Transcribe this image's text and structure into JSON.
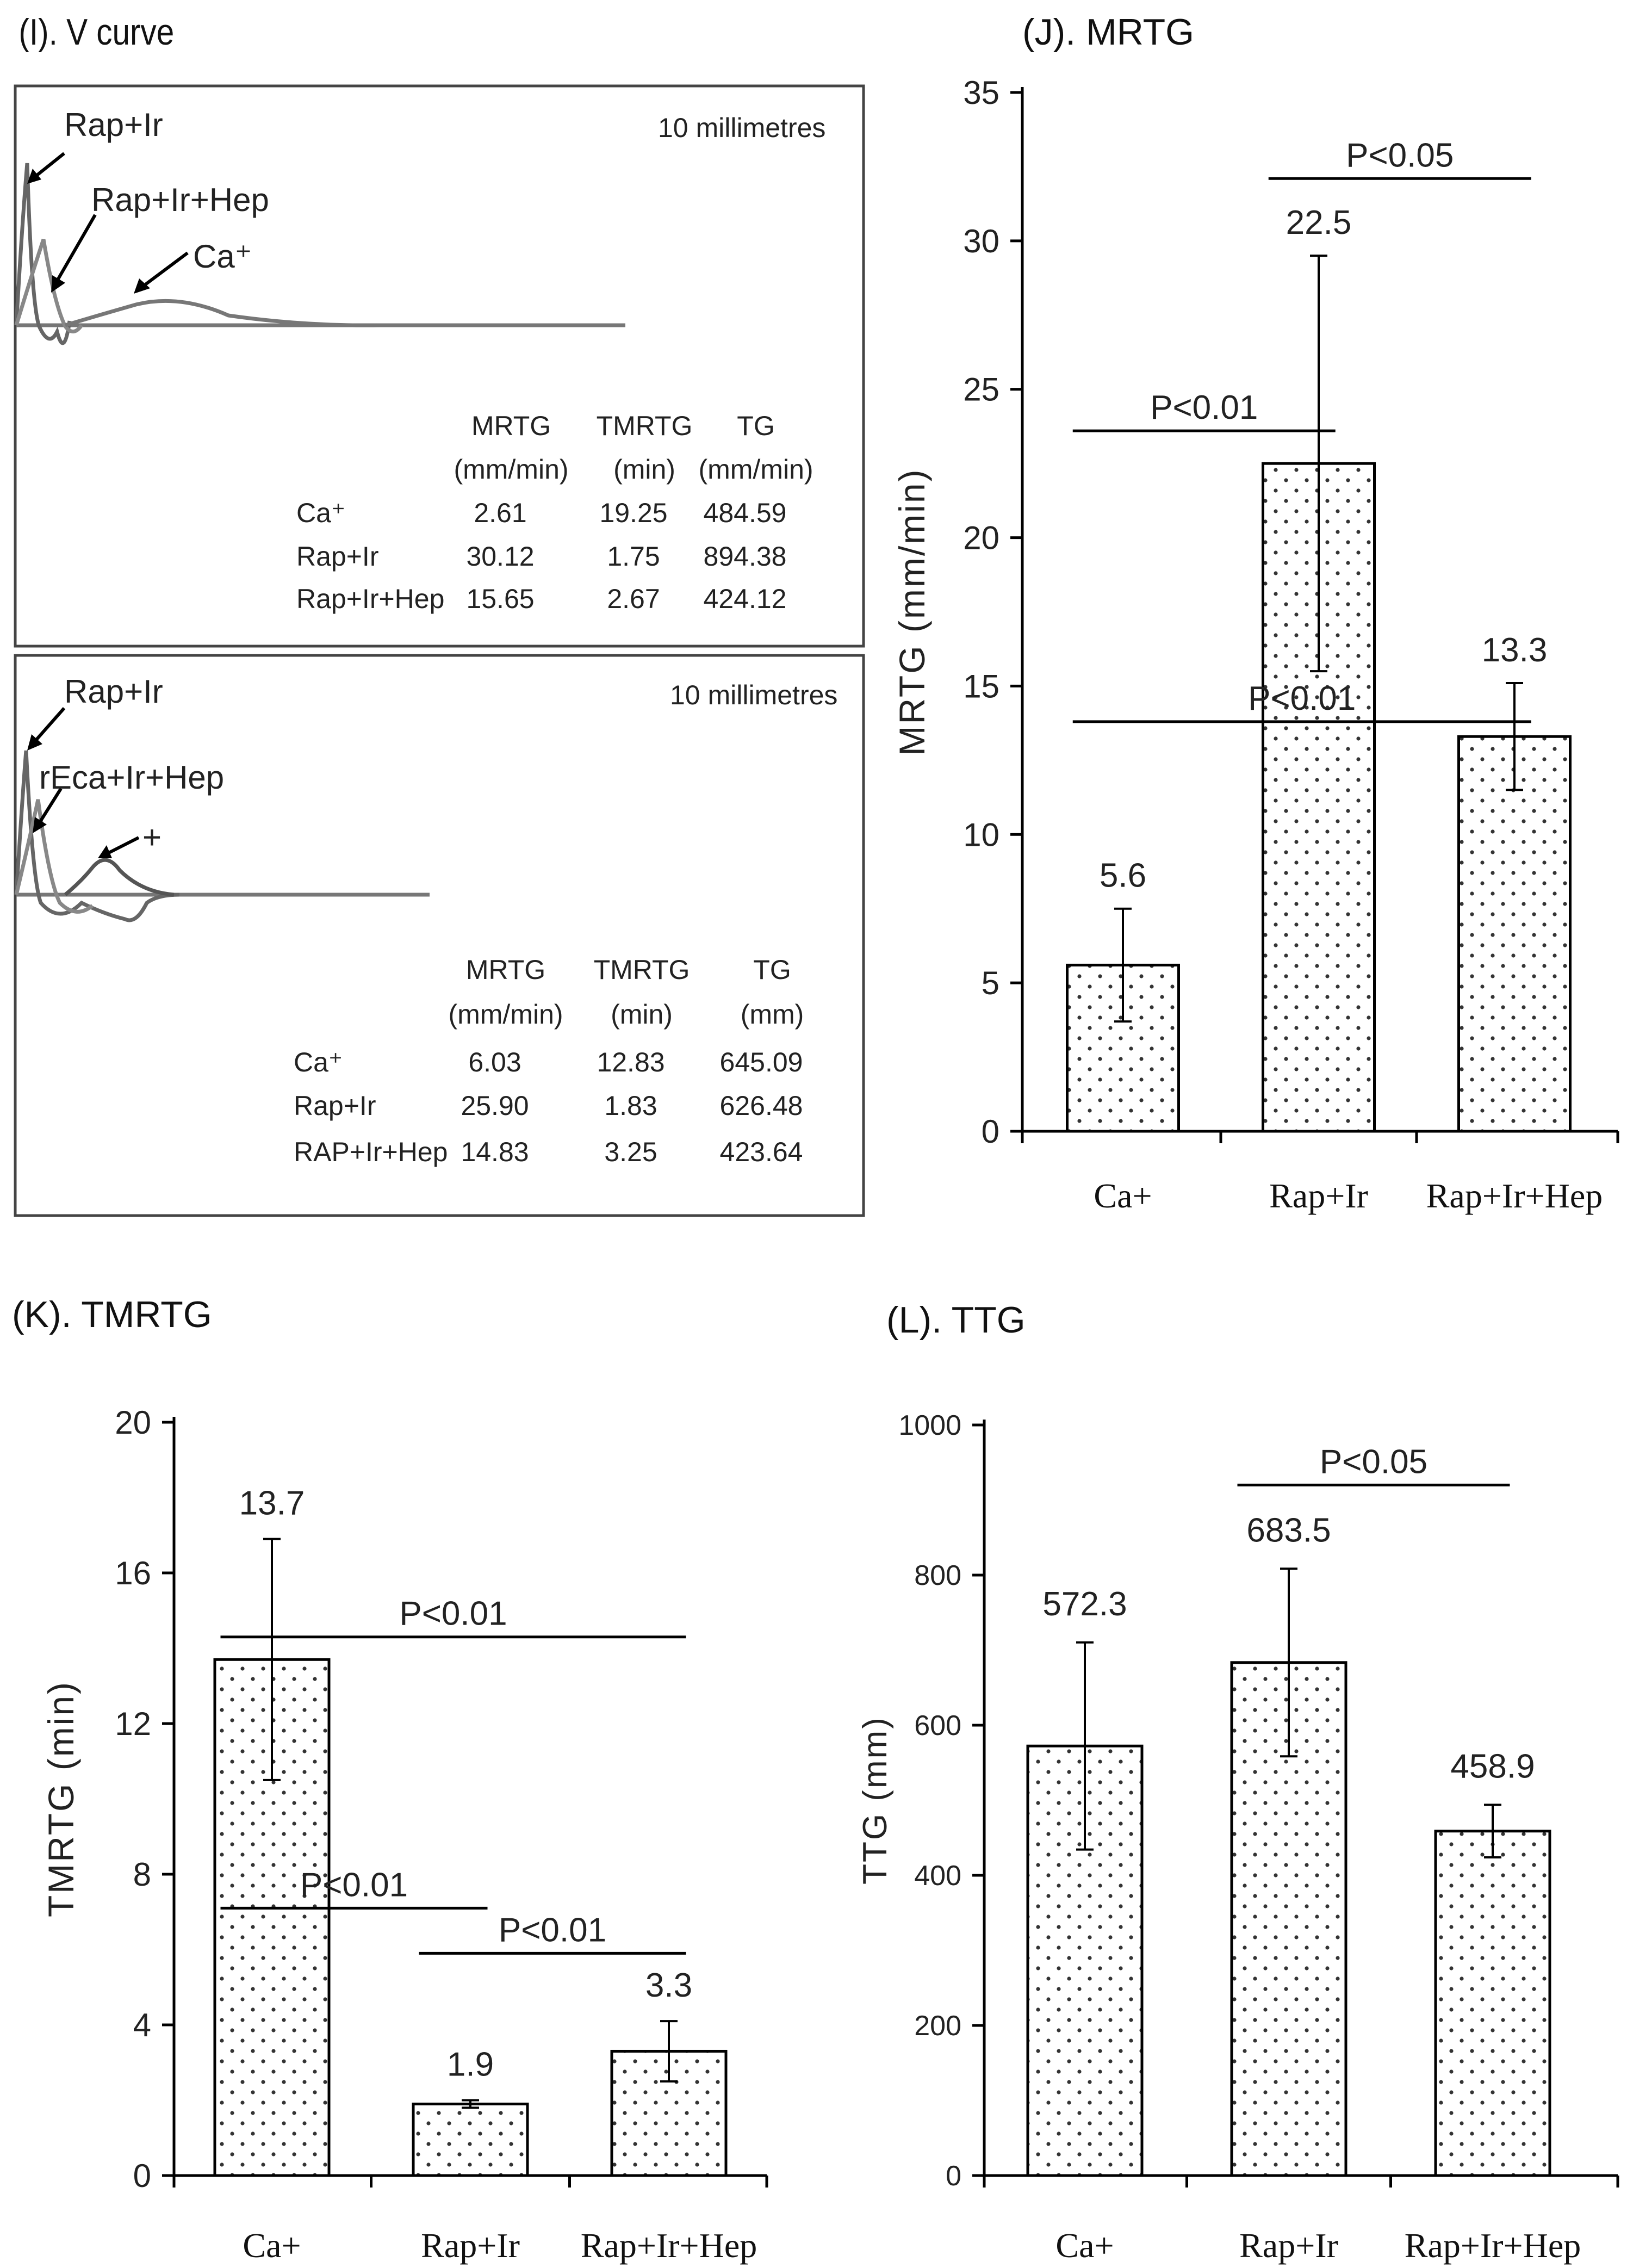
{
  "chart_data": [
    {
      "id": "I",
      "type": "table",
      "title": "(I). V curve",
      "panels": [
        {
          "scale_label": "10 millimetres",
          "curve_labels": [
            "Rap+Ir",
            "Rap+Ir+Hep",
            "Ca⁺"
          ],
          "columns": [
            {
              "name": "MRTG",
              "unit": "(mm/min)"
            },
            {
              "name": "TMRTG",
              "unit": "(min)"
            },
            {
              "name": "TG",
              "unit": "(mm/min)"
            }
          ],
          "rows": [
            {
              "label": "Ca⁺",
              "values": [
                "2.61",
                "19.25",
                "484.59"
              ]
            },
            {
              "label": "Rap+Ir",
              "values": [
                "30.12",
                "1.75",
                "894.38"
              ]
            },
            {
              "label": "Rap+Ir+Hep",
              "values": [
                "15.65",
                "2.67",
                "424.12"
              ]
            }
          ]
        },
        {
          "scale_label": "10 millimetres",
          "curve_labels": [
            "Rap+Ir",
            "rEca+Ir+Hep",
            "+"
          ],
          "columns": [
            {
              "name": "MRTG",
              "unit": "(mm/min)"
            },
            {
              "name": "TMRTG",
              "unit": "(min)"
            },
            {
              "name": "TG",
              "unit": "(mm)"
            }
          ],
          "rows": [
            {
              "label": "Ca⁺",
              "values": [
                "6.03",
                "12.83",
                "645.09"
              ]
            },
            {
              "label": "Rap+Ir",
              "values": [
                "25.90",
                "1.83",
                "626.48"
              ]
            },
            {
              "label": "RAP+Ir+Hep",
              "values": [
                "14.83",
                "3.25",
                "423.64"
              ]
            }
          ]
        }
      ]
    },
    {
      "id": "J",
      "type": "bar",
      "title": "(J). MRTG",
      "ylabel": "MRTG (mm/min)",
      "ylim": [
        0,
        35
      ],
      "yticks": [
        0,
        5,
        10,
        15,
        20,
        25,
        30,
        35
      ],
      "categories": [
        "Ca+",
        "Rap+Ir",
        "Rap+Ir+Hep"
      ],
      "values": [
        5.6,
        22.5,
        13.3
      ],
      "value_labels": [
        "5.6",
        "22.5",
        "13.3"
      ],
      "errors": [
        1.9,
        7.0,
        1.8
      ],
      "significance": [
        {
          "from": 0,
          "to": 1,
          "label": "P<0.01",
          "level": 23.6
        },
        {
          "from": 1,
          "to": 2,
          "label": "P<0.05",
          "level": 32.1
        },
        {
          "from": 0,
          "to": 2,
          "label": "P<0.01",
          "level": 13.8
        }
      ]
    },
    {
      "id": "K",
      "type": "bar",
      "title": "(K).  TMRTG",
      "ylabel": "TMRTG (min)",
      "ylim": [
        0,
        20
      ],
      "yticks": [
        0,
        4,
        8,
        12,
        16,
        20
      ],
      "categories": [
        "Ca+",
        "Rap+Ir",
        "Rap+Ir+Hep"
      ],
      "values": [
        13.7,
        1.9,
        3.3
      ],
      "value_labels": [
        "13.7",
        "1.9",
        "3.3"
      ],
      "errors": [
        3.2,
        0.1,
        0.8
      ],
      "significance": [
        {
          "from": 0,
          "to": 2,
          "label": "P<0.01",
          "level": 14.3
        },
        {
          "from": 0,
          "to": 1,
          "label": "P<0.01",
          "level": 7.1
        },
        {
          "from": 1,
          "to": 2,
          "label": "P<0.01",
          "level": 5.9
        }
      ]
    },
    {
      "id": "L",
      "type": "bar",
      "title": "(L). TTG",
      "ylabel": "TTG (mm)",
      "ylim": [
        0,
        1000
      ],
      "yticks": [
        0,
        200,
        400,
        600,
        800,
        1000
      ],
      "categories": [
        "Ca+",
        "Rap+Ir",
        "Rap+Ir+Hep"
      ],
      "values": [
        572.3,
        683.5,
        458.9
      ],
      "value_labels": [
        "572.3",
        "683.5",
        "458.9"
      ],
      "errors": [
        138,
        125,
        35
      ],
      "significance": [
        {
          "from": 1,
          "to": 2,
          "label": "P<0.05",
          "level": 920
        }
      ]
    }
  ]
}
